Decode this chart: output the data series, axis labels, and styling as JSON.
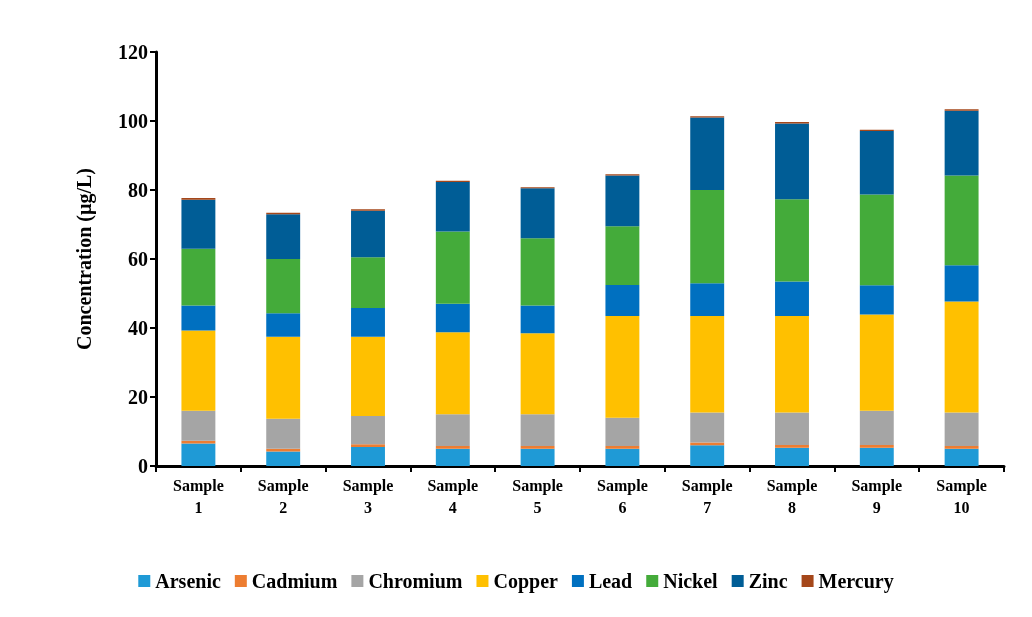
{
  "chart_data": {
    "type": "bar",
    "stacked": true,
    "ylabel": "Concentration (µg/L)",
    "categories": [
      "Sample 1",
      "Sample 2",
      "Sample 3",
      "Sample 4",
      "Sample 5",
      "Sample 6",
      "Sample 7",
      "Sample 8",
      "Sample 9",
      "Sample 10"
    ],
    "series": [
      {
        "name": "Arsenic",
        "color": "#1f9ad6",
        "values": [
          6.5,
          4.2,
          5.5,
          5,
          5,
          5,
          6,
          5.3,
          5.3,
          5
        ]
      },
      {
        "name": "Cadmium",
        "color": "#ed7d31",
        "values": [
          0.8,
          0.8,
          0.8,
          0.8,
          0.8,
          0.8,
          0.8,
          0.8,
          0.8,
          0.8
        ]
      },
      {
        "name": "Chromium",
        "color": "#a5a5a5",
        "values": [
          8.7,
          8.7,
          8.2,
          9.2,
          9.2,
          8.2,
          8.7,
          9.4,
          9.9,
          9.7
        ]
      },
      {
        "name": "Copper",
        "color": "#ffc000",
        "values": [
          23.3,
          23.8,
          23,
          23.8,
          23.5,
          29.5,
          28,
          28,
          27.9,
          32.2
        ]
      },
      {
        "name": "Lead",
        "color": "#0070c0",
        "values": [
          7.2,
          6.8,
          8.3,
          8.2,
          8,
          9,
          9.5,
          10,
          8.5,
          10.5
        ]
      },
      {
        "name": "Nickel",
        "color": "#44ab3a",
        "values": [
          16.5,
          15.7,
          14.7,
          21,
          19.5,
          17,
          27,
          23.8,
          26.3,
          26
        ]
      },
      {
        "name": "Zinc",
        "color": "#005d96",
        "values": [
          14.2,
          13,
          13.5,
          14.3,
          14.5,
          14.7,
          21,
          22,
          18.4,
          18.8
        ]
      },
      {
        "name": "Mercury",
        "color": "#a5471a",
        "values": [
          0.5,
          0.4,
          0.4,
          0.4,
          0.3,
          0.4,
          0.4,
          0.4,
          0.4,
          0.4
        ]
      }
    ],
    "ylim": [
      0,
      120
    ],
    "yticks": [
      0,
      20,
      40,
      60,
      80,
      100,
      120
    ],
    "grid": false,
    "legend": "bottom"
  }
}
